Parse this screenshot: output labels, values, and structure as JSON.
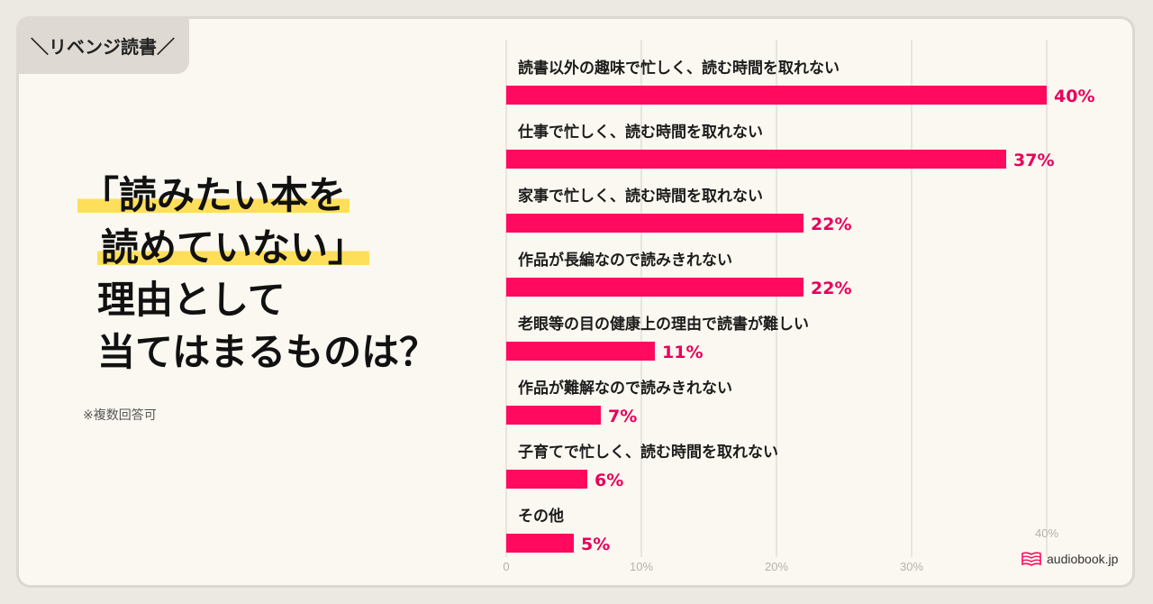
{
  "tag": {
    "label": "＼リベンジ読書／"
  },
  "headline": {
    "line1": "「読みたい本を",
    "line2": "読めていない」",
    "line3": "理由として",
    "line4": "当てはまるものは？"
  },
  "note": "※複数回答可",
  "logo": {
    "text": "audiobook.jp"
  },
  "colors": {
    "bar": "#ff0a5e",
    "value_text": "#e8005a",
    "grid": "#d6d2cb"
  },
  "chart_data": {
    "type": "bar",
    "orientation": "horizontal",
    "categories": [
      "読書以外の趣味で忙しく、読む時間を取れない",
      "仕事で忙しく、読む時間を取れない",
      "家事で忙しく、読む時間を取れない",
      "作品が長編なので読みきれない",
      "老眼等の目の健康上の理由で読書が難しい",
      "作品が難解なので読みきれない",
      "子育てで忙しく、読む時間を取れない",
      "その他"
    ],
    "values": [
      40,
      37,
      22,
      22,
      11,
      7,
      6,
      5
    ],
    "value_labels": [
      "40%",
      "37%",
      "22%",
      "22%",
      "11%",
      "7%",
      "6%",
      "5%"
    ],
    "xlim": [
      0,
      40
    ],
    "x_ticks": [
      0,
      10,
      20,
      30,
      40
    ],
    "x_tick_labels": [
      "0",
      "10%",
      "20%",
      "30%",
      "40%"
    ],
    "grid": true
  }
}
